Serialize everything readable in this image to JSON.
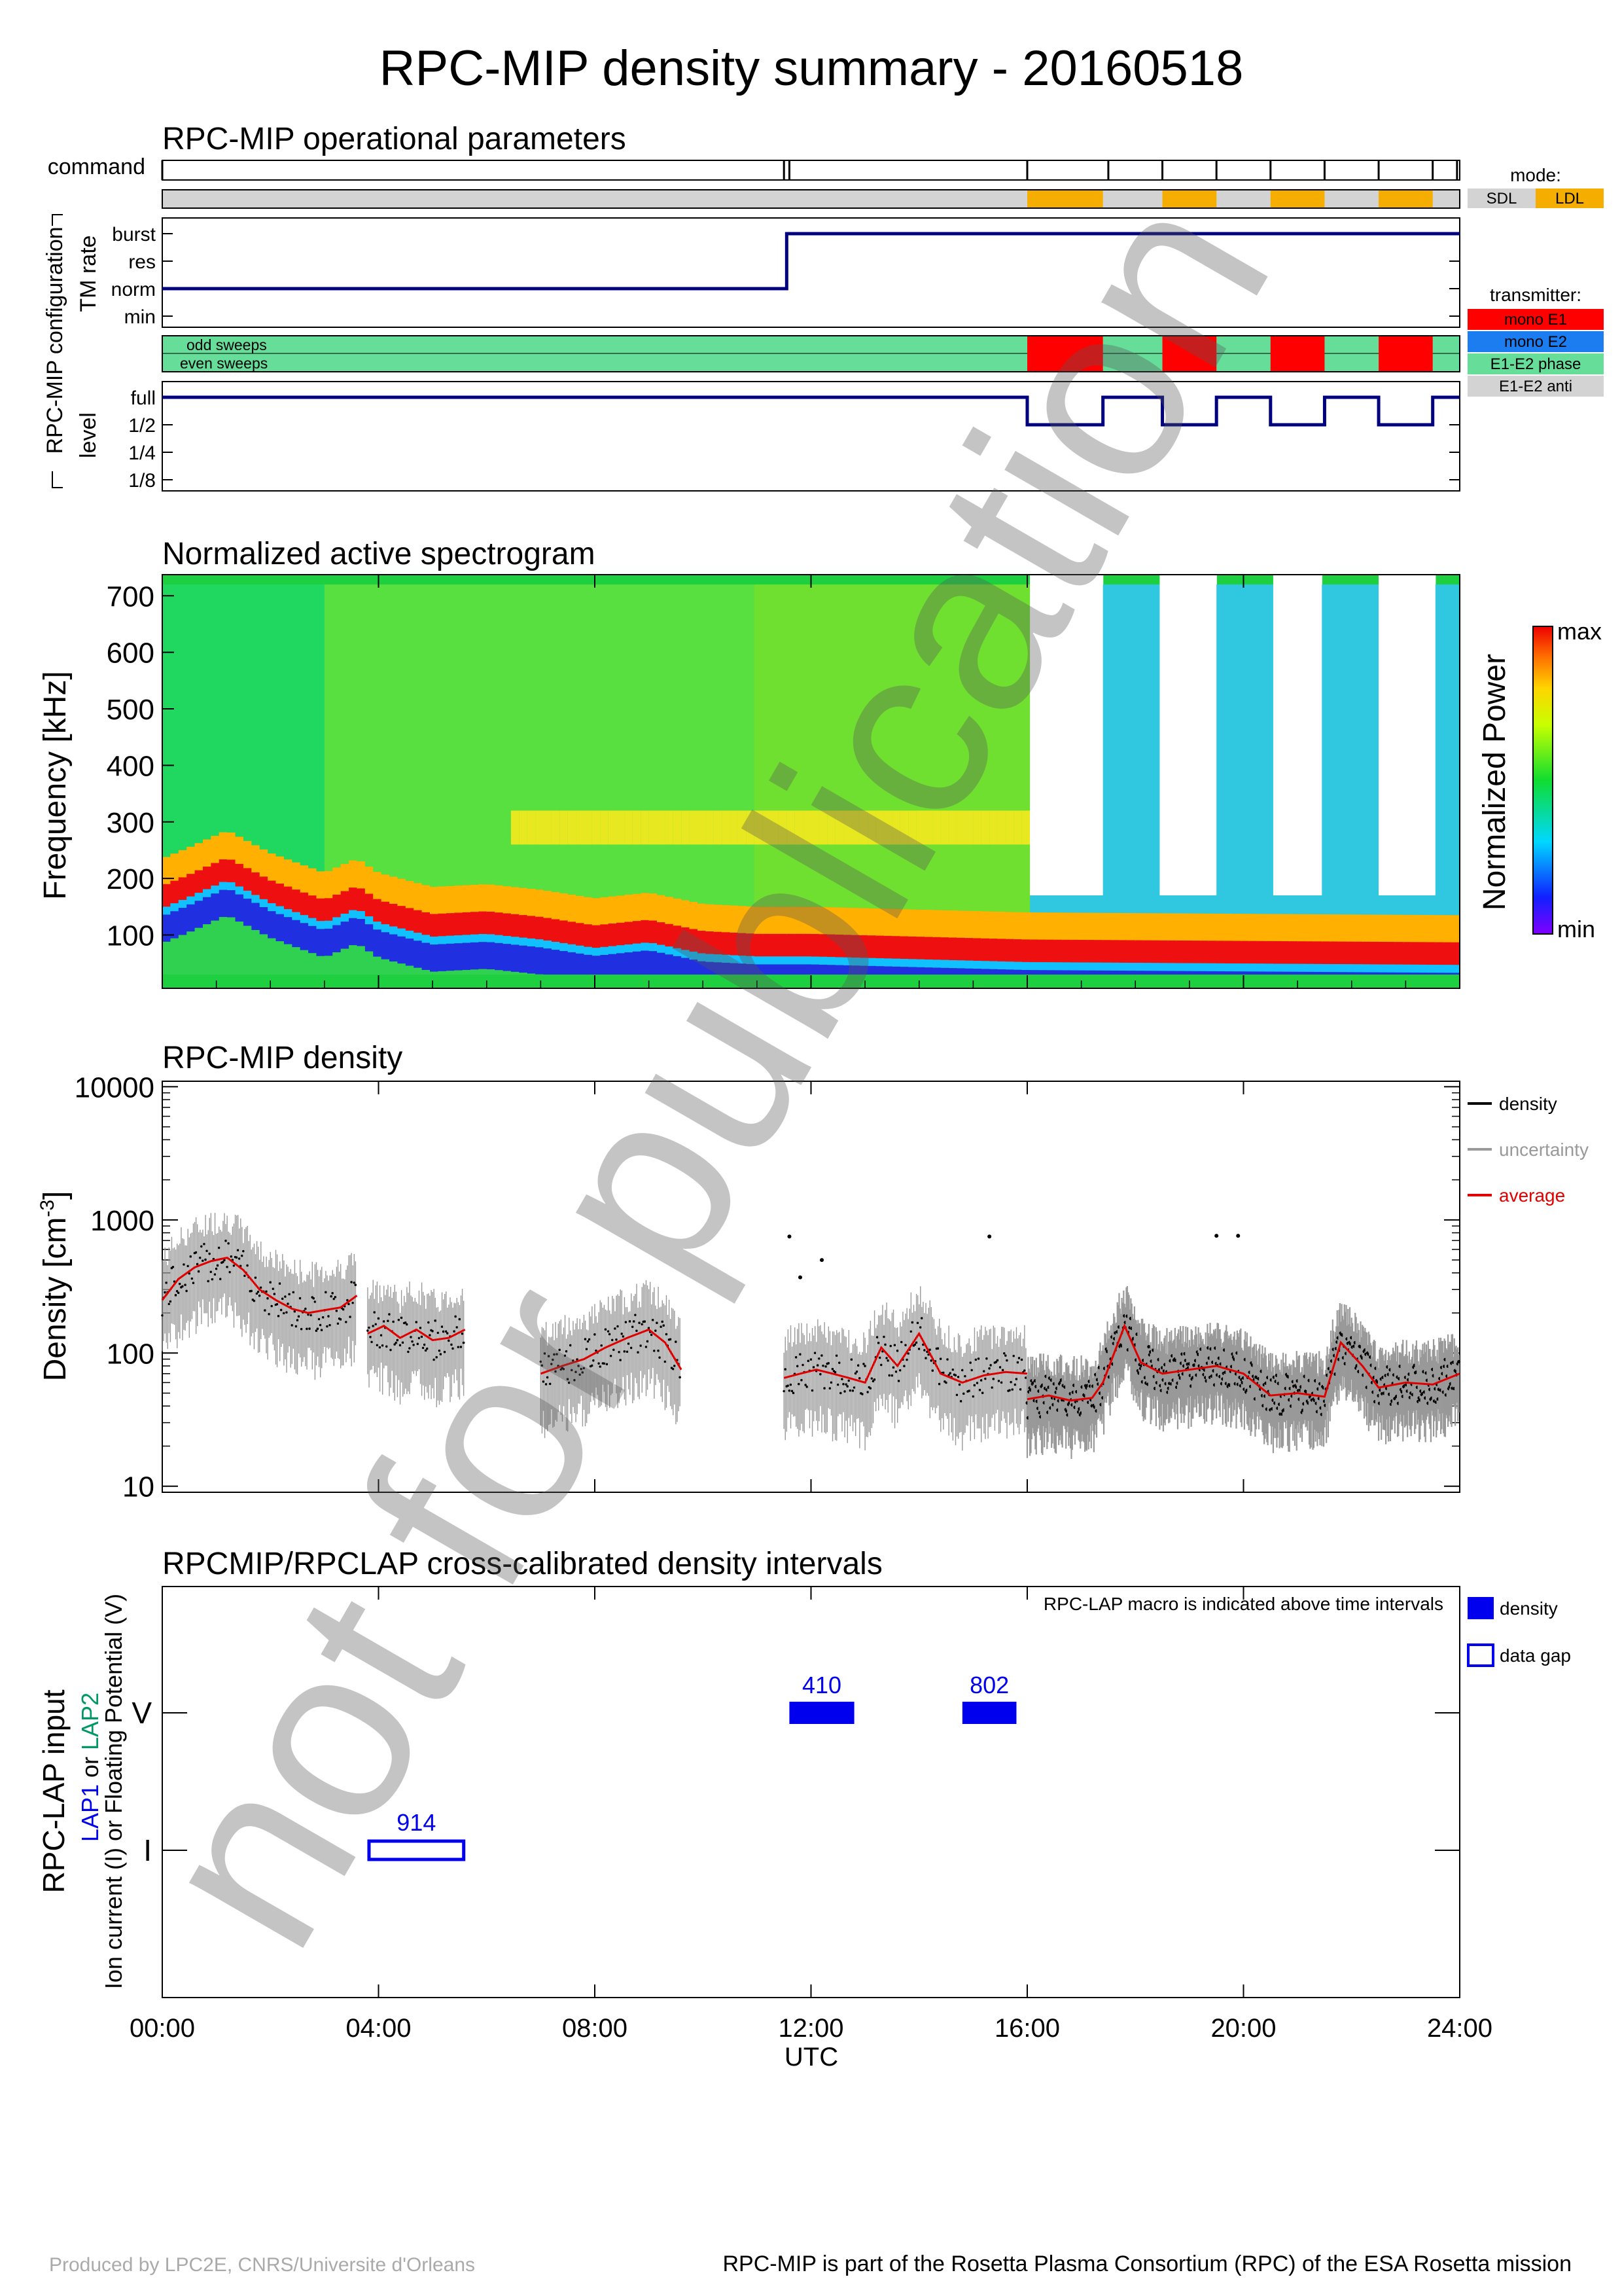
{
  "title": "RPC-MIP density summary - 20160518",
  "watermark": "not for publication",
  "footer": {
    "left": "Produced by LPC2E, CNRS/Universite d'Orleans",
    "right": "RPC-MIP is part of the Rosetta Plasma Consortium (RPC) of the ESA Rosetta mission"
  },
  "colors": {
    "navy": "#00007f",
    "mode_sdl": "#d3d3d3",
    "mode_ldl": "#f5ad00",
    "mono_e1": "#ff0000",
    "mono_e2": "#1b7df0",
    "e1e2_phase": "#66dd99",
    "e1e2_anti": "#d3d3d3",
    "density": "#000000",
    "uncertainty": "#999999",
    "average": "#e00000",
    "lap_bar": "#0000ee",
    "lap2": "#009966"
  },
  "time_axis": {
    "label": "UTC",
    "ticks": [
      "00:00",
      "04:00",
      "08:00",
      "12:00",
      "16:00",
      "20:00",
      "24:00"
    ],
    "range_hours": [
      0,
      24
    ]
  },
  "operational": {
    "title": "RPC-MIP operational parameters",
    "side_label": "RPC-MIP configuration",
    "command_label": "command",
    "command_times": [
      0,
      11.5,
      11.6,
      16,
      17.5,
      18.5,
      19.5,
      20.5,
      21.5,
      22.5,
      23.5,
      23.95
    ],
    "mode_legend_title": "mode:",
    "mode_legend": [
      "SDL",
      "LDL"
    ],
    "ldl_intervals": [
      [
        16,
        17.4
      ],
      [
        18.5,
        19.5
      ],
      [
        20.5,
        21.5
      ],
      [
        22.5,
        23.5
      ]
    ],
    "tm_rate": {
      "label": "TM rate",
      "levels": [
        "burst",
        "res",
        "norm",
        "min"
      ],
      "steps": [
        [
          0,
          "norm"
        ],
        [
          11.55,
          "burst"
        ],
        [
          24,
          "burst"
        ]
      ]
    },
    "transmitter_legend_title": "transmitter:",
    "transmitter_legend": [
      "mono E1",
      "mono E2",
      "E1-E2 phase",
      "E1-E2 anti"
    ],
    "sweeps": [
      "odd sweeps",
      "even sweeps"
    ],
    "mono_e1_intervals": [
      [
        16,
        17.4
      ],
      [
        18.5,
        19.5
      ],
      [
        20.5,
        21.5
      ],
      [
        22.5,
        23.5
      ]
    ],
    "level": {
      "label": "level",
      "levels": [
        "full",
        "1/2",
        "1/4",
        "1/8"
      ],
      "steps": [
        [
          0,
          "full"
        ],
        [
          16,
          "1/2"
        ],
        [
          17.4,
          "full"
        ],
        [
          18.5,
          "1/2"
        ],
        [
          19.5,
          "full"
        ],
        [
          20.5,
          "1/2"
        ],
        [
          21.5,
          "full"
        ],
        [
          22.5,
          "1/2"
        ],
        [
          23.5,
          "full"
        ],
        [
          24,
          "full"
        ]
      ]
    }
  },
  "spectrogram": {
    "title": "Normalized active spectrogram",
    "ylabel": "Frequency [kHz]",
    "yticks": [
      "700",
      "600",
      "500",
      "400",
      "300",
      "200",
      "100"
    ],
    "yrange": [
      30,
      720
    ],
    "colorbar_label": "Normalized Power",
    "colorbar_ticks": [
      "max",
      "min"
    ],
    "plasma_line_khz": [
      [
        0,
        165
      ],
      [
        0.5,
        185
      ],
      [
        1.2,
        215
      ],
      [
        2.0,
        175
      ],
      [
        3.0,
        140
      ],
      [
        3.6,
        165
      ],
      [
        4.0,
        140
      ],
      [
        5.0,
        115
      ],
      [
        6.0,
        120
      ],
      [
        7.0,
        110
      ],
      [
        8.0,
        95
      ],
      [
        9.0,
        105
      ],
      [
        10.0,
        85
      ],
      [
        11.0,
        80
      ],
      [
        12.0,
        80
      ],
      [
        14.0,
        75
      ],
      [
        16.0,
        70
      ],
      [
        24.0,
        65
      ]
    ],
    "white_gap_intervals": [
      [
        16,
        17.4
      ],
      [
        18.5,
        19.5
      ],
      [
        20.5,
        21.5
      ],
      [
        22.5,
        23.5
      ]
    ],
    "short_sweep_top_khz": 170
  },
  "density": {
    "title": "RPC-MIP density",
    "ylabel": "Density [cm",
    "ylabel_sup": "-3",
    "ylabel_end": "]",
    "yticks": [
      "10000",
      "1000",
      "100",
      "10"
    ],
    "ylim": [
      9,
      11000
    ],
    "legend": [
      "density",
      "uncertainty",
      "average"
    ]
  },
  "chart_data": [
    {
      "type": "line",
      "title": "RPC-MIP density",
      "xlabel": "UTC",
      "ylabel": "Density [cm-3]",
      "yscale": "log",
      "ylim": [
        9,
        11000
      ],
      "series": [
        {
          "name": "average",
          "x": [
            0,
            0.3,
            0.6,
            0.9,
            1.2,
            1.5,
            1.8,
            2.1,
            2.4,
            2.7,
            3.0,
            3.3,
            3.6
          ],
          "y": [
            250,
            360,
            440,
            490,
            520,
            420,
            300,
            250,
            215,
            200,
            210,
            220,
            270
          ]
        },
        {
          "name": "average",
          "x": [
            3.8,
            4.1,
            4.4,
            4.7,
            5.0,
            5.3,
            5.6
          ],
          "y": [
            140,
            160,
            130,
            150,
            125,
            130,
            150
          ]
        },
        {
          "name": "average",
          "x": [
            7.0,
            7.4,
            7.8,
            8.2,
            8.6,
            9.0,
            9.3,
            9.6
          ],
          "y": [
            70,
            80,
            90,
            110,
            130,
            150,
            120,
            75
          ]
        },
        {
          "name": "average",
          "x": [
            11.5,
            11.8,
            12.1,
            12.4,
            12.7,
            13.0,
            13.3,
            13.6,
            14.0,
            14.4,
            14.8,
            15.2,
            15.6,
            16.0
          ],
          "y": [
            65,
            70,
            75,
            70,
            65,
            60,
            110,
            80,
            140,
            70,
            60,
            68,
            72,
            70
          ]
        },
        {
          "name": "average",
          "x": [
            16.0,
            16.4,
            16.8,
            17.2,
            17.4,
            17.8,
            18.1,
            18.5,
            19.0,
            19.5,
            20.0,
            20.5,
            21.0,
            21.5,
            21.8,
            22.2,
            22.5,
            23.0,
            23.5,
            24.0
          ],
          "y": [
            45,
            48,
            44,
            46,
            60,
            160,
            85,
            70,
            75,
            80,
            70,
            48,
            50,
            47,
            120,
            80,
            55,
            60,
            58,
            70
          ]
        }
      ],
      "outliers": [
        [
          11.6,
          750
        ],
        [
          12.2,
          500
        ],
        [
          15.3,
          750
        ],
        [
          19.5,
          760
        ],
        [
          19.9,
          760
        ],
        [
          11.8,
          370
        ]
      ]
    },
    {
      "type": "bar",
      "title": "RPCMIP/RPCLAP cross-calibrated density intervals",
      "note": "RPC-LAP macro is indicated above time intervals",
      "y_categories": [
        "V",
        "I"
      ],
      "legend": [
        "density",
        "data gap"
      ],
      "intervals": [
        {
          "label": "914",
          "start": 3.8,
          "end": 5.6,
          "row": "I",
          "kind": "data gap"
        },
        {
          "label": "410",
          "start": 11.6,
          "end": 12.8,
          "row": "V",
          "kind": "density"
        },
        {
          "label": "802",
          "start": 14.8,
          "end": 15.8,
          "row": "V",
          "kind": "density"
        }
      ]
    }
  ],
  "lap": {
    "title": "RPCMIP/RPCLAP cross-calibrated density intervals",
    "note": "RPC-LAP macro is indicated above time intervals",
    "ylabel_main": "RPC-LAP input",
    "ylabel_lap1": "LAP1",
    "ylabel_or": " or ",
    "ylabel_lap2": "LAP2",
    "ylabel_sub": "Ion current (I) or Floating Potential (V)",
    "y_categories": [
      "V",
      "I"
    ],
    "legend": [
      "density",
      "data gap"
    ]
  }
}
